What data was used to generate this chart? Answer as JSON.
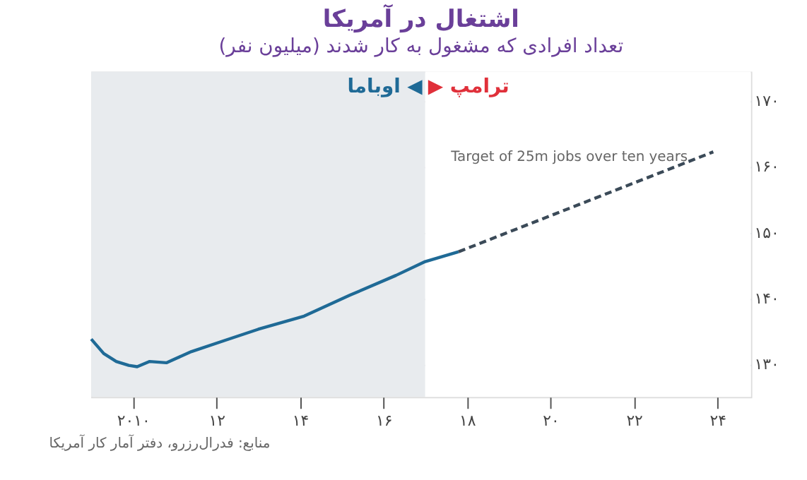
{
  "chart_data": {
    "type": "line",
    "title": "اشتغال در آمریکا",
    "subtitle": "تعداد افرادی که مشغول به کار شدند (میلیون نفر)",
    "series": [
      {
        "color": "#1f6a96",
        "line_style": "solid",
        "x": [
          2009.0,
          2009.3,
          2009.6,
          2009.9,
          2010.1,
          2010.4,
          2010.8,
          2011.4,
          2012.2,
          2013.0,
          2014.1,
          2015.2,
          2016.3,
          2017.0,
          2017.8
        ],
        "values": [
          133.8,
          131.6,
          130.4,
          129.8,
          129.6,
          130.4,
          130.2,
          131.9,
          133.6,
          135.3,
          137.3,
          140.5,
          143.5,
          145.6,
          147.1
        ]
      },
      {
        "color": "#3b4a58",
        "line_style": "dashed",
        "x": [
          2017.8,
          2023.9
        ],
        "values": [
          147.1,
          162.3
        ]
      }
    ],
    "xlim": [
      2009.0,
      2024.8
    ],
    "ylim": [
      125,
      174.5
    ],
    "xticks": [
      {
        "value": 2010,
        "label": "۲۰۱۰"
      },
      {
        "value": 2012,
        "label": "۱۲"
      },
      {
        "value": 2014,
        "label": "۱۴"
      },
      {
        "value": 2016,
        "label": "۱۶"
      },
      {
        "value": 2018,
        "label": "۱۸"
      },
      {
        "value": 2020,
        "label": "۲۰"
      },
      {
        "value": 2022,
        "label": "۲۲"
      },
      {
        "value": 2024,
        "label": "۲۴"
      }
    ],
    "yticks": [
      {
        "value": 130,
        "label": "۱۳۰"
      },
      {
        "value": 140,
        "label": "۱۴۰"
      },
      {
        "value": 150,
        "label": "۱۵۰"
      },
      {
        "value": 160,
        "label": "۱۶۰"
      },
      {
        "value": 170,
        "label": "۱۷۰"
      }
    ],
    "bands": [
      {
        "axis": "x",
        "from": 2009.0,
        "to": 2017.0,
        "label": "اوباما ◀",
        "color": "#e8ebee"
      },
      {
        "axis": "x",
        "from": 2017.0,
        "to": 2024.8,
        "label": "▶ ترامپ",
        "color": "#ffffff"
      }
    ],
    "annotations": [
      "Target of 25m jobs over ten years",
      "منابع: فدرال‌رزرو، دفتر آمار کار آمریکا"
    ],
    "grid": "y"
  }
}
